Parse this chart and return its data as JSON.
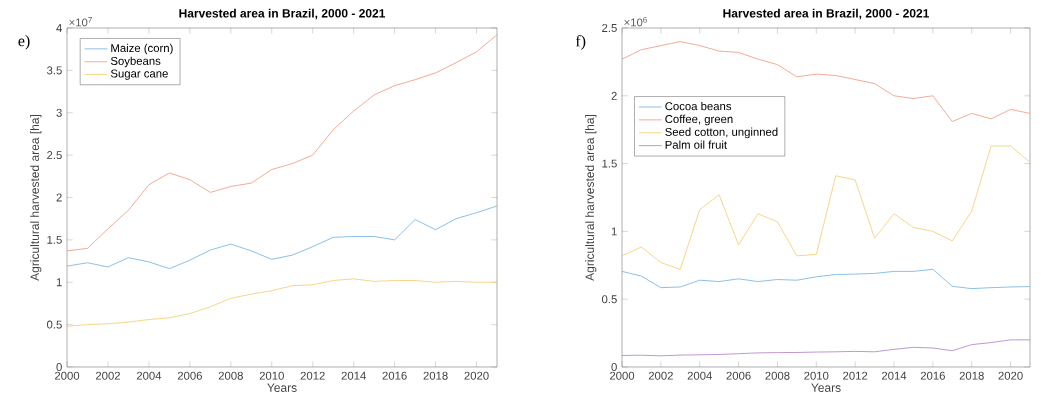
{
  "chart_data": [
    {
      "type": "line",
      "title": "Harvested area in Brazil, 2000 - 2021",
      "xlabel": "Years",
      "ylabel": "Agricultural harvested area [ha]",
      "annotations": [
        "×10$^{7}$",
        "e)"
      ],
      "x": [
        2000,
        2001,
        2002,
        2003,
        2004,
        2005,
        2006,
        2007,
        2008,
        2009,
        2010,
        2011,
        2012,
        2013,
        2014,
        2015,
        2016,
        2017,
        2018,
        2019,
        2020,
        2021
      ],
      "series": [
        {
          "name": "Maize (corn)",
          "color": "#6fb0e0",
          "values": [
            1.19,
            1.23,
            1.18,
            1.29,
            1.24,
            1.16,
            1.26,
            1.38,
            1.45,
            1.37,
            1.27,
            1.32,
            1.42,
            1.53,
            1.54,
            1.54,
            1.5,
            1.74,
            1.62,
            1.75,
            1.82,
            1.9
          ]
        },
        {
          "name": "Soybeans",
          "color": "#f0957a",
          "values": [
            1.37,
            1.4,
            1.63,
            1.85,
            2.15,
            2.29,
            2.21,
            2.06,
            2.13,
            2.17,
            2.33,
            2.4,
            2.5,
            2.8,
            3.02,
            3.21,
            3.32,
            3.39,
            3.47,
            3.59,
            3.72,
            3.92
          ]
        },
        {
          "name": "Sugar cane",
          "color": "#f5cc6a",
          "values": [
            0.48,
            0.5,
            0.51,
            0.53,
            0.56,
            0.58,
            0.63,
            0.71,
            0.81,
            0.86,
            0.9,
            0.96,
            0.97,
            1.02,
            1.04,
            1.01,
            1.02,
            1.02,
            1.0,
            1.01,
            1.0,
            1.0
          ]
        }
      ],
      "xlim": [
        2000,
        2021
      ],
      "ylim": [
        0,
        4
      ],
      "xticks": [
        2000,
        2002,
        2004,
        2006,
        2008,
        2010,
        2012,
        2014,
        2016,
        2018,
        2020
      ],
      "yticks": [
        0,
        0.5,
        1,
        1.5,
        2,
        2.5,
        3,
        3.5,
        4
      ],
      "grid": false,
      "legend": "top left",
      "marker": "none",
      "line_style": "solid"
    },
    {
      "type": "line",
      "title": "Harvested area in Brazil, 2000 - 2021",
      "xlabel": "Years",
      "ylabel": "Agricultural harvested area [ha]",
      "annotations": [
        "×10$^{6}$",
        "f)"
      ],
      "x": [
        2000,
        2001,
        2002,
        2003,
        2004,
        2005,
        2006,
        2007,
        2008,
        2009,
        2010,
        2011,
        2012,
        2013,
        2014,
        2015,
        2016,
        2017,
        2018,
        2019,
        2020,
        2021
      ],
      "series": [
        {
          "name": "Cocoa beans",
          "color": "#6fb0e0",
          "values": [
            0.705,
            0.67,
            0.585,
            0.59,
            0.64,
            0.63,
            0.65,
            0.63,
            0.645,
            0.64,
            0.665,
            0.682,
            0.685,
            0.69,
            0.705,
            0.705,
            0.72,
            0.595,
            0.578,
            0.585,
            0.59,
            0.593
          ]
        },
        {
          "name": "Coffee, green",
          "color": "#f0957a",
          "values": [
            2.27,
            2.34,
            2.37,
            2.4,
            2.37,
            2.33,
            2.32,
            2.27,
            2.23,
            2.14,
            2.16,
            2.15,
            2.12,
            2.09,
            2.0,
            1.98,
            2.0,
            1.81,
            1.87,
            1.83,
            1.9,
            1.87
          ]
        },
        {
          "name": "Seed cotton, unginned",
          "color": "#f5cc6a",
          "values": [
            0.82,
            0.885,
            0.77,
            0.72,
            1.16,
            1.27,
            0.9,
            1.13,
            1.07,
            0.82,
            0.83,
            1.41,
            1.38,
            0.95,
            1.13,
            1.03,
            1.0,
            0.93,
            1.15,
            1.63,
            1.63,
            1.51
          ]
        },
        {
          "name": "Palm oil fruit",
          "color": "#b07cc6",
          "values": [
            0.085,
            0.087,
            0.082,
            0.088,
            0.09,
            0.092,
            0.098,
            0.104,
            0.106,
            0.107,
            0.11,
            0.112,
            0.115,
            0.112,
            0.13,
            0.145,
            0.14,
            0.12,
            0.165,
            0.18,
            0.2,
            0.2
          ]
        }
      ],
      "xlim": [
        2000,
        2021
      ],
      "ylim": [
        0,
        2.5
      ],
      "xticks": [
        2000,
        2002,
        2004,
        2006,
        2008,
        2010,
        2012,
        2014,
        2016,
        2018,
        2020
      ],
      "yticks": [
        0,
        0.5,
        1,
        1.5,
        2,
        2.5
      ],
      "grid": false,
      "legend": "left",
      "marker": "none",
      "line_style": "solid"
    }
  ]
}
